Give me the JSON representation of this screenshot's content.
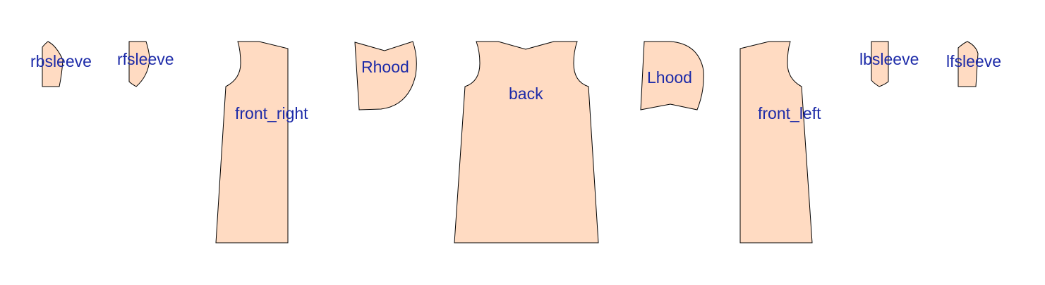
{
  "diagram": {
    "fill_color": "#FFDBC2",
    "stroke_color": "#000000",
    "label_color": "#1C2AA8",
    "pieces": [
      {
        "id": "rbsleeve",
        "label": "rbsleeve"
      },
      {
        "id": "rfsleeve",
        "label": "rfsleeve"
      },
      {
        "id": "front_right",
        "label": "front_right"
      },
      {
        "id": "rhood",
        "label": "Rhood"
      },
      {
        "id": "back",
        "label": "back"
      },
      {
        "id": "lhood",
        "label": "Lhood"
      },
      {
        "id": "front_left",
        "label": "front_left"
      },
      {
        "id": "lbsleeve",
        "label": "lbsleeve"
      },
      {
        "id": "lfsleeve",
        "label": "lfsleeve"
      }
    ]
  }
}
